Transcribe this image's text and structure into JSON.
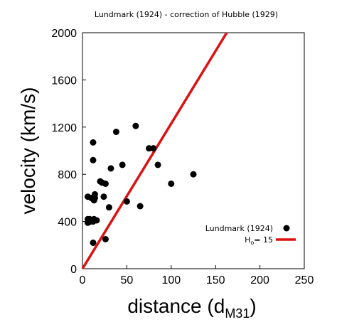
{
  "chart_data": {
    "type": "scatter",
    "title": "Lundmark (1924) - correction of Hubble (1929)",
    "xlabel": "distance (d",
    "xlabel_sub": "M31",
    "xlabel_close": ")",
    "ylabel": "velocity (km/s)",
    "xlim": [
      0,
      250
    ],
    "ylim": [
      0,
      2000
    ],
    "xticks": [
      0,
      50,
      100,
      150,
      200,
      250
    ],
    "yticks": [
      0,
      400,
      800,
      1200,
      1600,
      2000
    ],
    "grid": false,
    "legend_position": "bottom-right",
    "series": [
      {
        "name": "Lundmark (1924)",
        "kind": "points",
        "color": "#000000",
        "points": [
          [
            12,
            220
          ],
          [
            6,
            390
          ],
          [
            6,
            420
          ],
          [
            8,
            420
          ],
          [
            9,
            400
          ],
          [
            11,
            410
          ],
          [
            12,
            400
          ],
          [
            13,
            420
          ],
          [
            16,
            410
          ],
          [
            6,
            610
          ],
          [
            10,
            600
          ],
          [
            12,
            590
          ],
          [
            13,
            580
          ],
          [
            14,
            600
          ],
          [
            14,
            630
          ],
          [
            12,
            920
          ],
          [
            12,
            1070
          ],
          [
            20,
            740
          ],
          [
            22,
            730
          ],
          [
            24,
            610
          ],
          [
            26,
            720
          ],
          [
            26,
            250
          ],
          [
            30,
            520
          ],
          [
            32,
            850
          ],
          [
            38,
            1160
          ],
          [
            45,
            880
          ],
          [
            50,
            570
          ],
          [
            60,
            1210
          ],
          [
            65,
            530
          ],
          [
            75,
            1020
          ],
          [
            80,
            1020
          ],
          [
            85,
            880
          ],
          [
            100,
            720
          ],
          [
            125,
            800
          ]
        ]
      },
      {
        "name": "H",
        "name_sub": "o",
        "name_suffix": "= 15",
        "kind": "line",
        "color": "#dd1111",
        "slope": 12.3,
        "points": [
          [
            0,
            0
          ],
          [
            162.6,
            2000
          ]
        ]
      }
    ]
  }
}
